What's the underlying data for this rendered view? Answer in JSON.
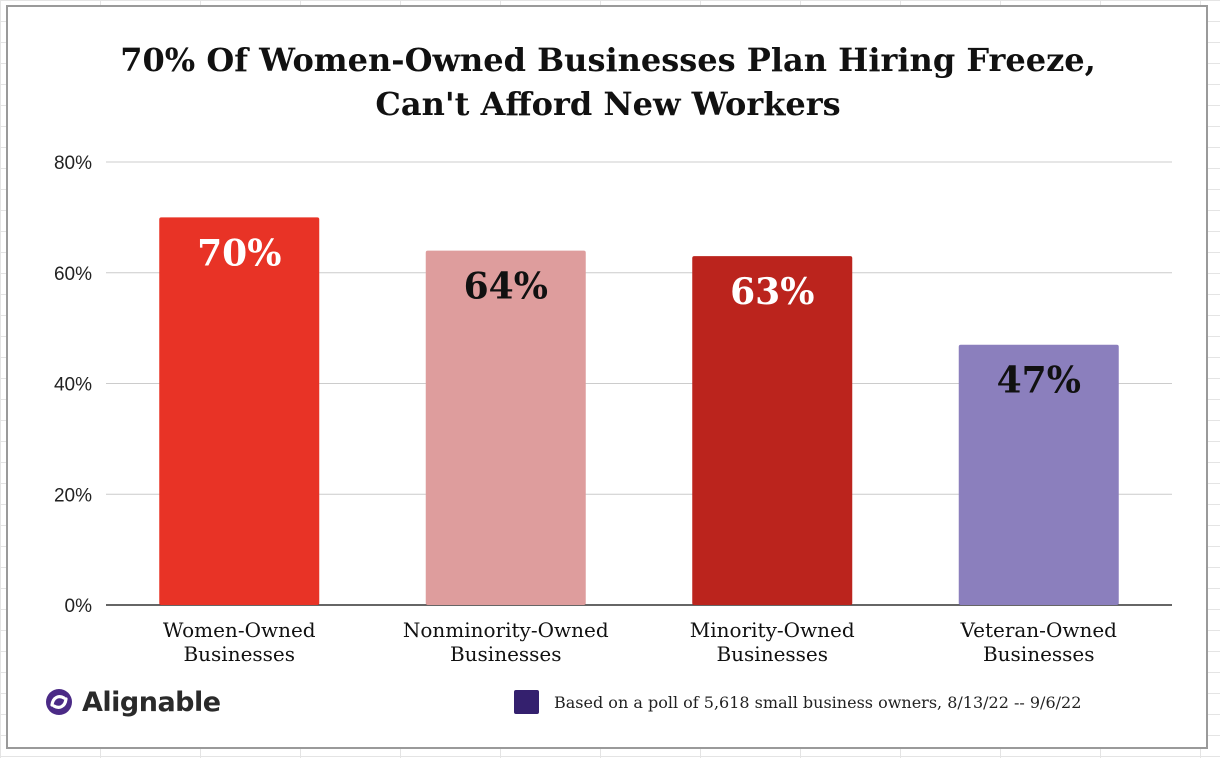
{
  "chart_data": {
    "type": "bar",
    "title_line1": "70% Of Women-Owned Businesses Plan Hiring Freeze,",
    "title_line2": "Can't Afford New Workers",
    "categories": [
      [
        "Women-Owned",
        "Businesses"
      ],
      [
        "Nonminority-Owned",
        "Businesses"
      ],
      [
        "Minority-Owned",
        "Businesses"
      ],
      [
        "Veteran-Owned",
        "Businesses"
      ]
    ],
    "values": [
      70,
      64,
      63,
      47
    ],
    "data_labels": [
      "70%",
      "64%",
      "63%",
      "47%"
    ],
    "bar_colors": [
      "#e83326",
      "#de9d9d",
      "#bb241d",
      "#8b7fbd"
    ],
    "label_colors": [
      "#ffffff",
      "#111111",
      "#ffffff",
      "#111111"
    ],
    "ylim": [
      0,
      80
    ],
    "yticks": [
      0,
      20,
      40,
      60,
      80
    ],
    "ytick_labels": [
      "0%",
      "20%",
      "40%",
      "60%",
      "80%"
    ],
    "grid": true,
    "xlabel": "",
    "ylabel": ""
  },
  "footer": {
    "logo_text": "Alignable",
    "logo_icon": "alignable-logo-icon",
    "note_text": "Based on a poll of 5,618 small business owners, 8/13/22 -- 9/6/22",
    "note_color": "#34206e"
  }
}
